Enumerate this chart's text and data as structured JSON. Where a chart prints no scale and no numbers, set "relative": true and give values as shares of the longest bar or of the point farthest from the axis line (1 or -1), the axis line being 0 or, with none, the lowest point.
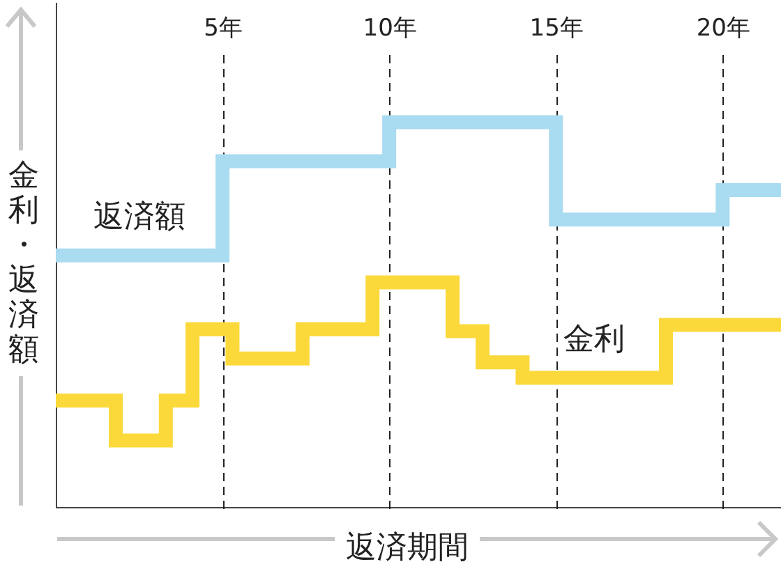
{
  "chart_data": {
    "type": "step",
    "relative": true,
    "xlabel": "返済期間",
    "ylabel": "金利・返済額",
    "xlim": [
      0,
      21.75
    ],
    "xticks": [
      {
        "value": 5,
        "label": "5年"
      },
      {
        "value": 10,
        "label": "10年"
      },
      {
        "value": 15,
        "label": "15年"
      },
      {
        "value": 20,
        "label": "20年"
      }
    ],
    "grid": "x",
    "tick_labels": "x",
    "series": [
      {
        "name": "返済額",
        "color": "#a9dbf1",
        "x": [
          0,
          5,
          10,
          15,
          20,
          21.75
        ],
        "values": [
          0.655,
          0.899,
          1,
          0.748,
          0.824,
          0.824
        ]
      },
      {
        "name": "金利",
        "color": "#fbd93a",
        "x": [
          0,
          1.8,
          3.3,
          4.1,
          5.3,
          7.4,
          9.5,
          11.9,
          12.8,
          14.0,
          18.3,
          21.75
        ],
        "values": [
          0.279,
          0.176,
          0.279,
          0.464,
          0.388,
          0.464,
          0.585,
          0.459,
          0.378,
          0.338,
          0.475,
          0.475
        ]
      }
    ]
  }
}
